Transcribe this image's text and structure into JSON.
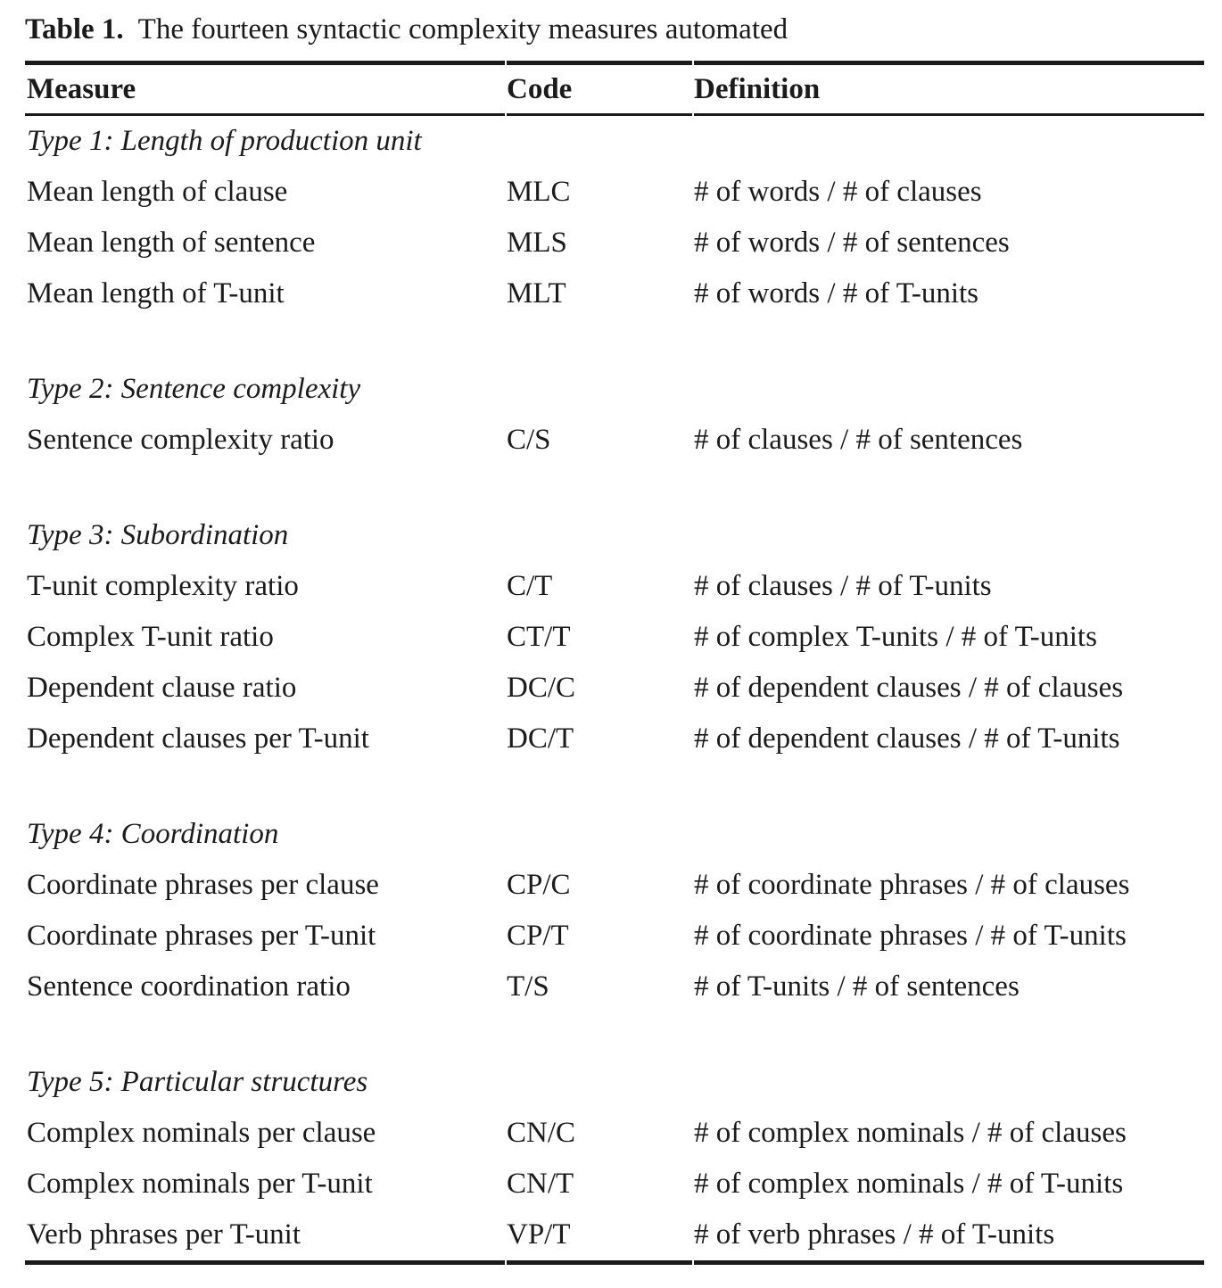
{
  "caption": {
    "label": "Table 1.",
    "text": "The fourteen syntactic complexity measures automated"
  },
  "colors": {
    "ink": "#1b1b1b",
    "rule": "#1a1a1a",
    "background": "#ffffff"
  },
  "table": {
    "columns": [
      "Measure",
      "Code",
      "Definition"
    ],
    "sections": [
      {
        "heading": "Type 1: Length of production unit",
        "rows": [
          {
            "measure": "Mean length of clause",
            "code": "MLC",
            "definition": "# of words / # of clauses"
          },
          {
            "measure": "Mean length of sentence",
            "code": "MLS",
            "definition": "# of words / # of sentences"
          },
          {
            "measure": "Mean length of T-unit",
            "code": "MLT",
            "definition": "# of words / # of T-units"
          }
        ]
      },
      {
        "heading": "Type 2: Sentence complexity",
        "rows": [
          {
            "measure": "Sentence complexity ratio",
            "code": "C/S",
            "definition": "# of clauses / # of sentences"
          }
        ]
      },
      {
        "heading": "Type 3: Subordination",
        "rows": [
          {
            "measure": "T-unit complexity ratio",
            "code": "C/T",
            "definition": "# of clauses / # of T-units"
          },
          {
            "measure": "Complex T-unit ratio",
            "code": "CT/T",
            "definition": "# of complex T-units / # of T-units"
          },
          {
            "measure": "Dependent clause ratio",
            "code": "DC/C",
            "definition": "# of dependent clauses / # of clauses"
          },
          {
            "measure": "Dependent clauses per T-unit",
            "code": "DC/T",
            "definition": "# of dependent clauses / # of T-units"
          }
        ]
      },
      {
        "heading": "Type 4: Coordination",
        "rows": [
          {
            "measure": "Coordinate phrases per clause",
            "code": "CP/C",
            "definition": "# of coordinate phrases / # of clauses"
          },
          {
            "measure": "Coordinate phrases per T-unit",
            "code": "CP/T",
            "definition": "# of coordinate phrases / # of T-units"
          },
          {
            "measure": "Sentence coordination ratio",
            "code": "T/S",
            "definition": "# of T-units / # of sentences"
          }
        ]
      },
      {
        "heading": "Type 5: Particular structures",
        "rows": [
          {
            "measure": "Complex nominals per clause",
            "code": "CN/C",
            "definition": "# of complex nominals / # of clauses"
          },
          {
            "measure": "Complex nominals per T-unit",
            "code": "CN/T",
            "definition": "# of complex nominals / # of T-units"
          },
          {
            "measure": "Verb phrases per T-unit",
            "code": "VP/T",
            "definition": "# of verb phrases / # of T-units"
          }
        ]
      }
    ]
  }
}
